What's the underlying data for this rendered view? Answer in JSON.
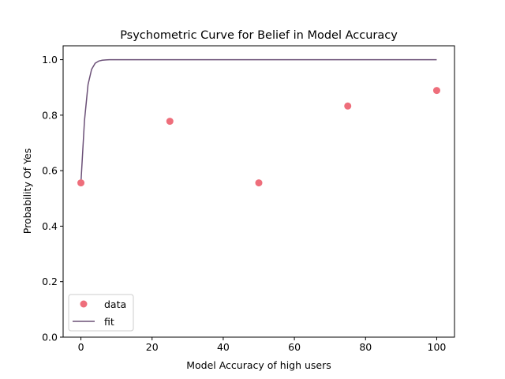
{
  "chart_data": {
    "type": "scatter",
    "title": "Psychometric Curve for Belief in Model Accuracy",
    "xlabel": "Model Accuracy of high users",
    "ylabel": "Probability Of Yes",
    "xlim": [
      -5,
      105
    ],
    "ylim": [
      0,
      1.05
    ],
    "xticks": [
      0,
      20,
      40,
      60,
      80,
      100
    ],
    "yticks": [
      0.0,
      0.2,
      0.4,
      0.6,
      0.8,
      1.0
    ],
    "xtick_labels": [
      "0",
      "20",
      "40",
      "60",
      "80",
      "100"
    ],
    "ytick_labels": [
      "0.0",
      "0.2",
      "0.4",
      "0.6",
      "0.8",
      "1.0"
    ],
    "grid": false,
    "legend_position": "lower-left",
    "series": [
      {
        "name": "data",
        "kind": "scatter",
        "color": "#ee6e7b",
        "x": [
          0,
          25,
          50,
          75,
          100
        ],
        "y": [
          0.556,
          0.778,
          0.556,
          0.833,
          0.889
        ]
      },
      {
        "name": "fit",
        "kind": "line",
        "color": "#6b5077",
        "x": [
          0,
          1,
          2,
          3,
          4,
          5,
          6,
          7,
          8,
          10,
          15,
          20,
          30,
          40,
          50,
          60,
          70,
          80,
          90,
          100
        ],
        "y": [
          0.556,
          0.78,
          0.91,
          0.965,
          0.987,
          0.995,
          0.998,
          0.999,
          1.0,
          1.0,
          1.0,
          1.0,
          1.0,
          1.0,
          1.0,
          1.0,
          1.0,
          1.0,
          1.0,
          1.0
        ]
      }
    ]
  }
}
